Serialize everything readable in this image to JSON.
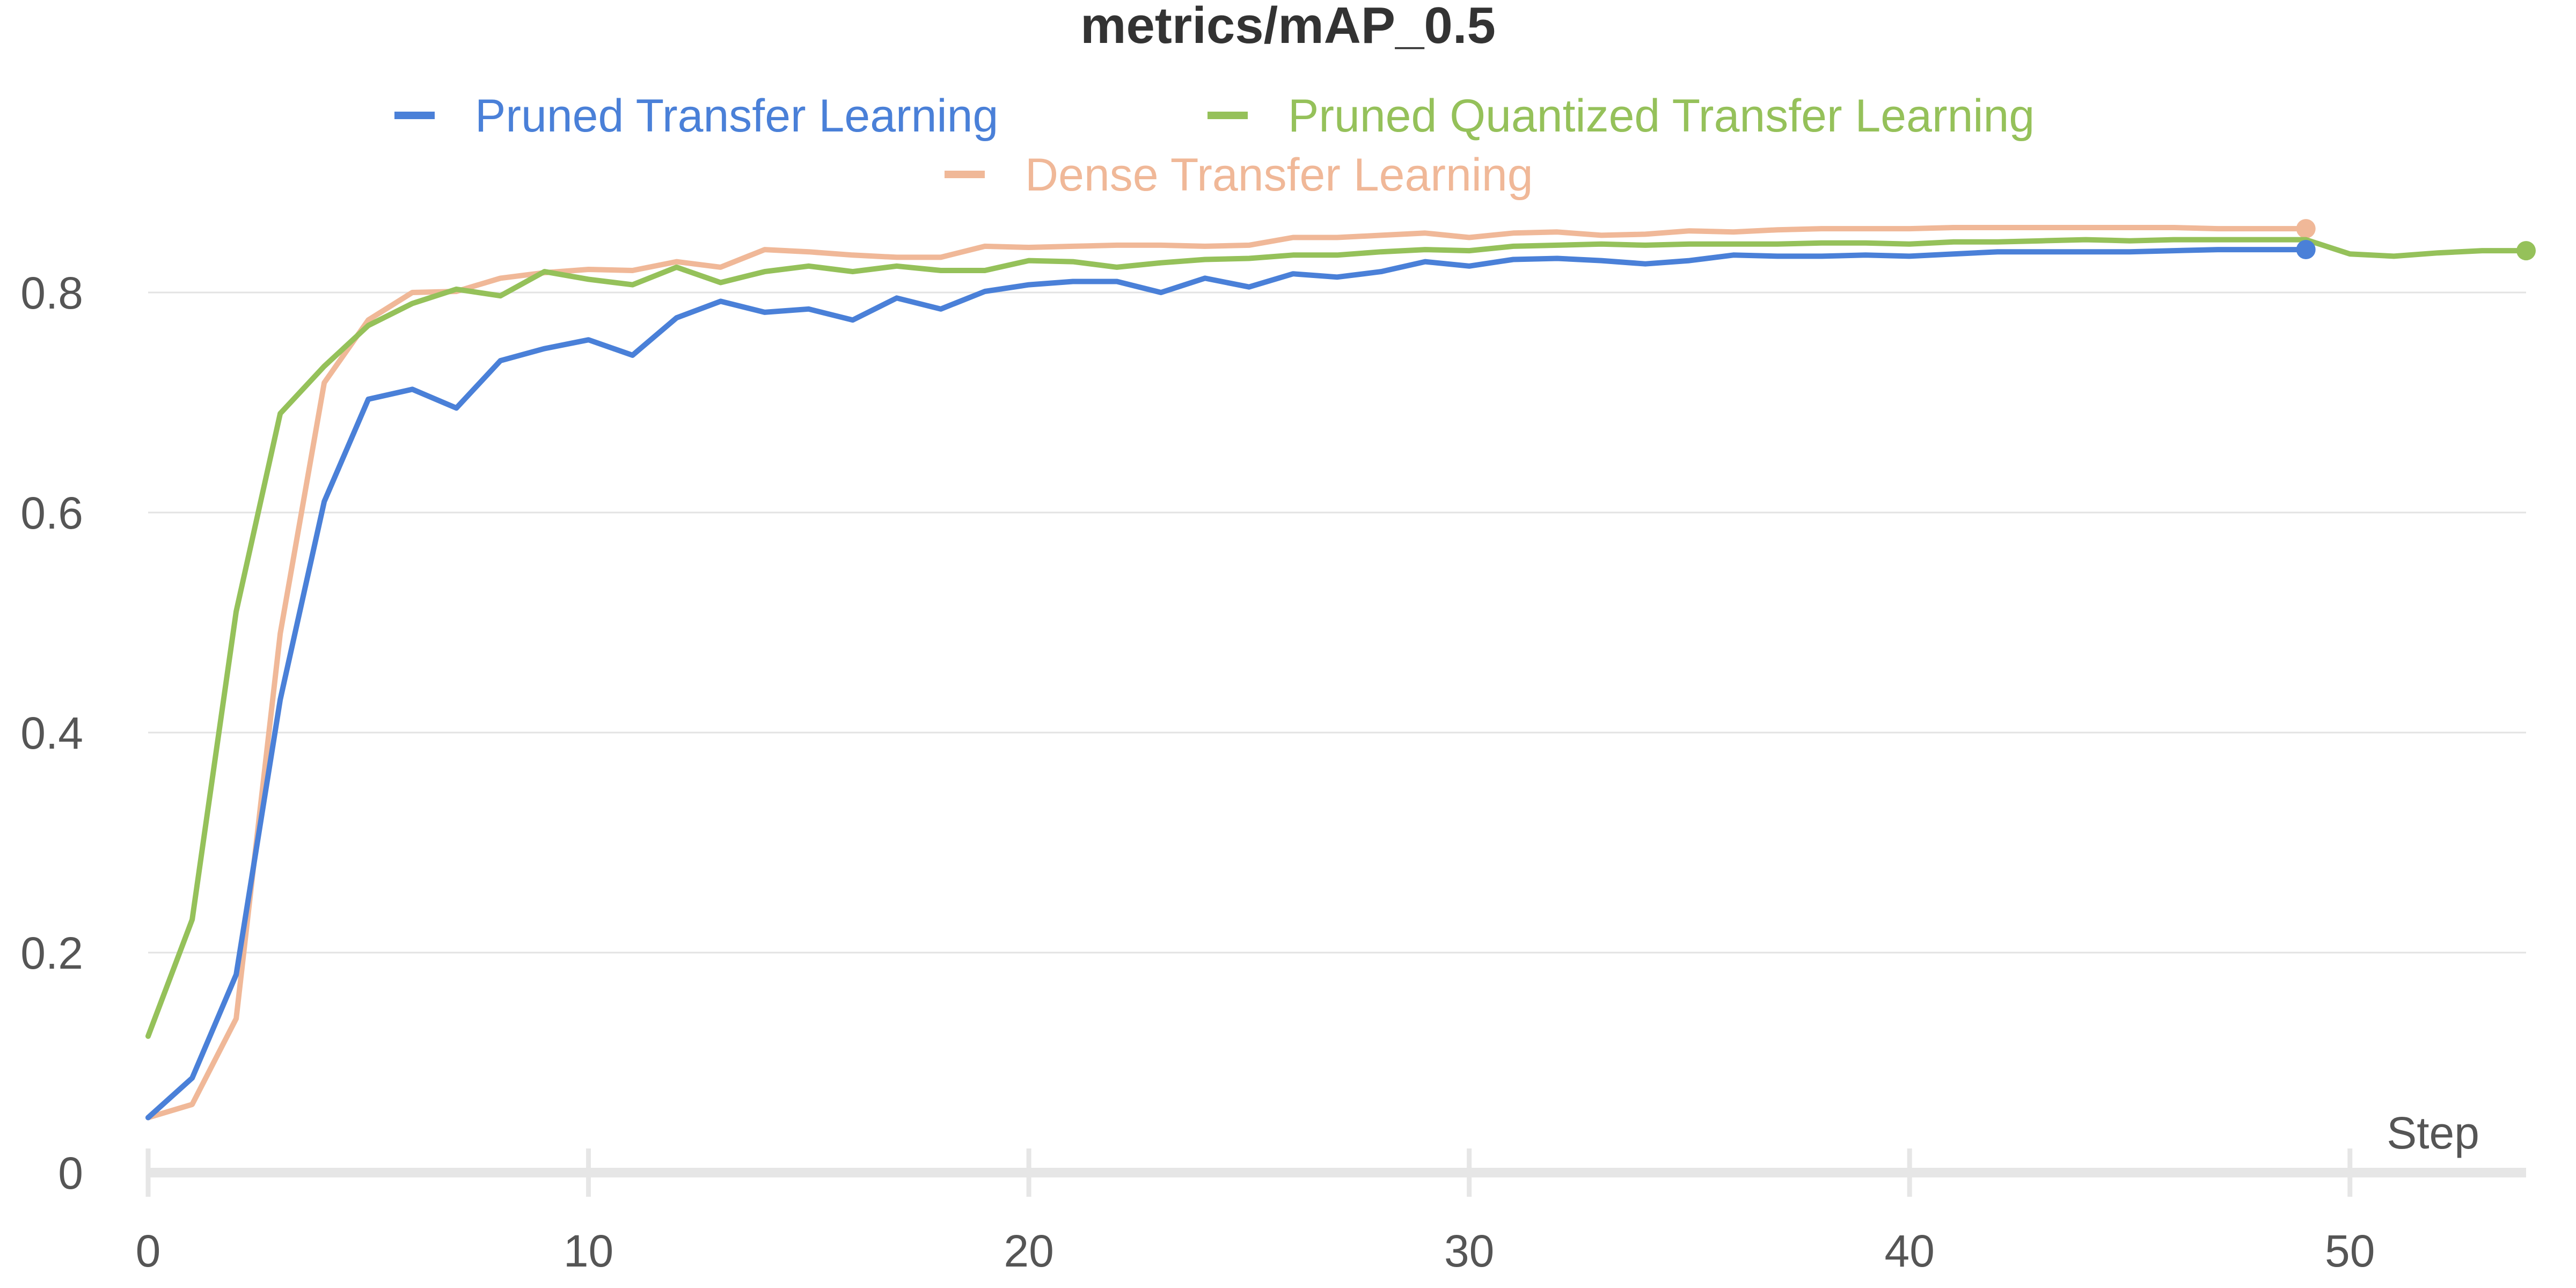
{
  "chart_data": {
    "type": "line",
    "title": "metrics/mAP_0.5",
    "xlabel": "Step",
    "ylabel": "",
    "xlim": [
      0,
      54
    ],
    "ylim": [
      0,
      0.9
    ],
    "xticks": [
      0,
      10,
      20,
      30,
      40,
      50
    ],
    "yticks": [
      0,
      0.2,
      0.4,
      0.6,
      0.8
    ],
    "ytick_labels": [
      "0",
      "0.2",
      "0.4",
      "0.6",
      "0.8"
    ],
    "grid": "horizontal",
    "legend_position": "top",
    "series": [
      {
        "name": "Pruned Transfer Learning",
        "color": "#4a80d8",
        "x": [
          0,
          1,
          2,
          3,
          4,
          5,
          6,
          7,
          8,
          9,
          10,
          11,
          12,
          13,
          14,
          15,
          16,
          17,
          18,
          19,
          20,
          21,
          22,
          23,
          24,
          25,
          26,
          27,
          28,
          29,
          30,
          31,
          32,
          33,
          34,
          35,
          36,
          37,
          38,
          39,
          40,
          41,
          42,
          43,
          44,
          45,
          46,
          47,
          48,
          49
        ],
        "values": [
          0.05,
          0.086,
          0.18,
          0.43,
          0.61,
          0.703,
          0.712,
          0.695,
          0.738,
          0.749,
          0.757,
          0.743,
          0.777,
          0.792,
          0.782,
          0.785,
          0.775,
          0.795,
          0.785,
          0.801,
          0.807,
          0.81,
          0.81,
          0.8,
          0.813,
          0.805,
          0.817,
          0.814,
          0.819,
          0.828,
          0.824,
          0.83,
          0.831,
          0.829,
          0.826,
          0.829,
          0.834,
          0.833,
          0.833,
          0.834,
          0.833,
          0.835,
          0.837,
          0.837,
          0.837,
          0.837,
          0.838,
          0.839,
          0.839,
          0.839
        ]
      },
      {
        "name": "Pruned Quantized Transfer Learning",
        "color": "#95c15a",
        "x": [
          0,
          1,
          2,
          3,
          4,
          5,
          6,
          7,
          8,
          9,
          10,
          11,
          12,
          13,
          14,
          15,
          16,
          17,
          18,
          19,
          20,
          21,
          22,
          23,
          24,
          25,
          26,
          27,
          28,
          29,
          30,
          31,
          32,
          33,
          34,
          35,
          36,
          37,
          38,
          39,
          40,
          41,
          42,
          43,
          44,
          45,
          46,
          47,
          48,
          49,
          50,
          51,
          52,
          53,
          54
        ],
        "values": [
          0.124,
          0.23,
          0.51,
          0.69,
          0.733,
          0.77,
          0.79,
          0.803,
          0.797,
          0.819,
          0.812,
          0.807,
          0.823,
          0.809,
          0.819,
          0.824,
          0.819,
          0.824,
          0.82,
          0.82,
          0.829,
          0.828,
          0.823,
          0.827,
          0.83,
          0.831,
          0.834,
          0.834,
          0.837,
          0.839,
          0.838,
          0.842,
          0.843,
          0.844,
          0.843,
          0.844,
          0.844,
          0.844,
          0.845,
          0.845,
          0.844,
          0.846,
          0.846,
          0.847,
          0.848,
          0.847,
          0.848,
          0.848,
          0.848,
          0.848,
          0.835,
          0.833,
          0.836,
          0.838,
          0.838
        ]
      },
      {
        "name": "Dense Transfer Learning",
        "color": "#f0b898",
        "x": [
          0,
          1,
          2,
          3,
          4,
          5,
          6,
          7,
          8,
          9,
          10,
          11,
          12,
          13,
          14,
          15,
          16,
          17,
          18,
          19,
          20,
          21,
          22,
          23,
          24,
          25,
          26,
          27,
          28,
          29,
          30,
          31,
          32,
          33,
          34,
          35,
          36,
          37,
          38,
          39,
          40,
          41,
          42,
          43,
          44,
          45,
          46,
          47,
          48,
          49
        ],
        "values": [
          0.05,
          0.062,
          0.14,
          0.49,
          0.718,
          0.775,
          0.8,
          0.801,
          0.813,
          0.818,
          0.821,
          0.82,
          0.828,
          0.823,
          0.839,
          0.837,
          0.834,
          0.832,
          0.832,
          0.842,
          0.841,
          0.842,
          0.843,
          0.843,
          0.842,
          0.843,
          0.85,
          0.85,
          0.852,
          0.854,
          0.85,
          0.854,
          0.855,
          0.852,
          0.853,
          0.856,
          0.855,
          0.857,
          0.858,
          0.858,
          0.858,
          0.859,
          0.859,
          0.859,
          0.859,
          0.859,
          0.859,
          0.858,
          0.858,
          0.858
        ]
      }
    ]
  }
}
